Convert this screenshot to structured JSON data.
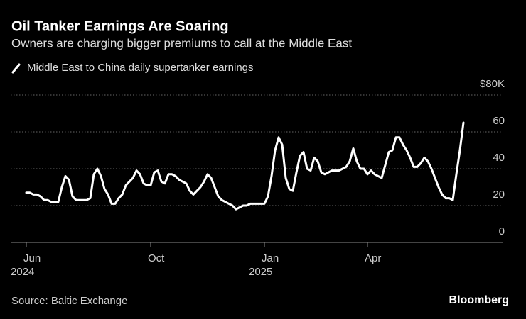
{
  "chart_data": {
    "type": "line",
    "title": "Oil Tanker Earnings Are Soaring",
    "subtitle": "Owners are charging bigger premiums to call at the Middle East",
    "source": "Source: Baltic Exchange",
    "brand": "Bloomberg",
    "categories": [
      "Jun 2024",
      null,
      null,
      null,
      null,
      null,
      null,
      null,
      null,
      null,
      null,
      null,
      null,
      null,
      null,
      null,
      null,
      null,
      null,
      null,
      null,
      null,
      null,
      null,
      null,
      null,
      null,
      null,
      null,
      null,
      null,
      null,
      null,
      null,
      null,
      "Oct",
      null,
      null,
      null,
      null,
      null,
      null,
      null,
      null,
      null,
      null,
      null,
      null,
      null,
      null,
      null,
      null,
      null,
      null,
      null,
      null,
      null,
      null,
      null,
      null,
      null,
      null,
      null,
      null,
      null,
      null,
      null,
      "Jan 2025",
      null,
      null,
      null,
      null,
      null,
      null,
      null,
      null,
      null,
      null,
      null,
      null,
      null,
      null,
      null,
      null,
      null,
      null,
      null,
      null,
      null,
      null,
      null,
      null,
      null,
      null,
      null,
      null,
      "Apr",
      null,
      null,
      null,
      null,
      null,
      null,
      null,
      null,
      null,
      null,
      null,
      null,
      null,
      null,
      null,
      null,
      null,
      null,
      null,
      null,
      null,
      null,
      null,
      null,
      null,
      null,
      null
    ],
    "series": [
      {
        "name": "Middle East to China daily supertanker earnings",
        "color": "#ffffff",
        "values": [
          27,
          27,
          26,
          26,
          25,
          23,
          23,
          22,
          22,
          22,
          30,
          36,
          34,
          25,
          23,
          23,
          23,
          23,
          24,
          37,
          40,
          36,
          29,
          26,
          21,
          21,
          24,
          26,
          31,
          33,
          35,
          39,
          37,
          32,
          31,
          31,
          38,
          39,
          33,
          32,
          37,
          37,
          36,
          34,
          33,
          32,
          28,
          26,
          28,
          30,
          33,
          37,
          35,
          30,
          25,
          23,
          22,
          21,
          20,
          18,
          19,
          20,
          20,
          21,
          21,
          21,
          21,
          21,
          25,
          36,
          50,
          57,
          53,
          35,
          29,
          28,
          38,
          47,
          49,
          40,
          39,
          46,
          44,
          38,
          37,
          38,
          39,
          39,
          39,
          40,
          41,
          44,
          51,
          44,
          40,
          40,
          37,
          39,
          37,
          36,
          35,
          42,
          49,
          50,
          57,
          57,
          53,
          50,
          46,
          41,
          41,
          43,
          46,
          44,
          40,
          35,
          30,
          26,
          24,
          24,
          23,
          37,
          50,
          65
        ]
      }
    ],
    "ylim": [
      0,
      80
    ],
    "yticks": [
      0,
      20,
      40,
      60,
      {
        "value": 80,
        "label": "$80K"
      }
    ],
    "grid": true
  }
}
